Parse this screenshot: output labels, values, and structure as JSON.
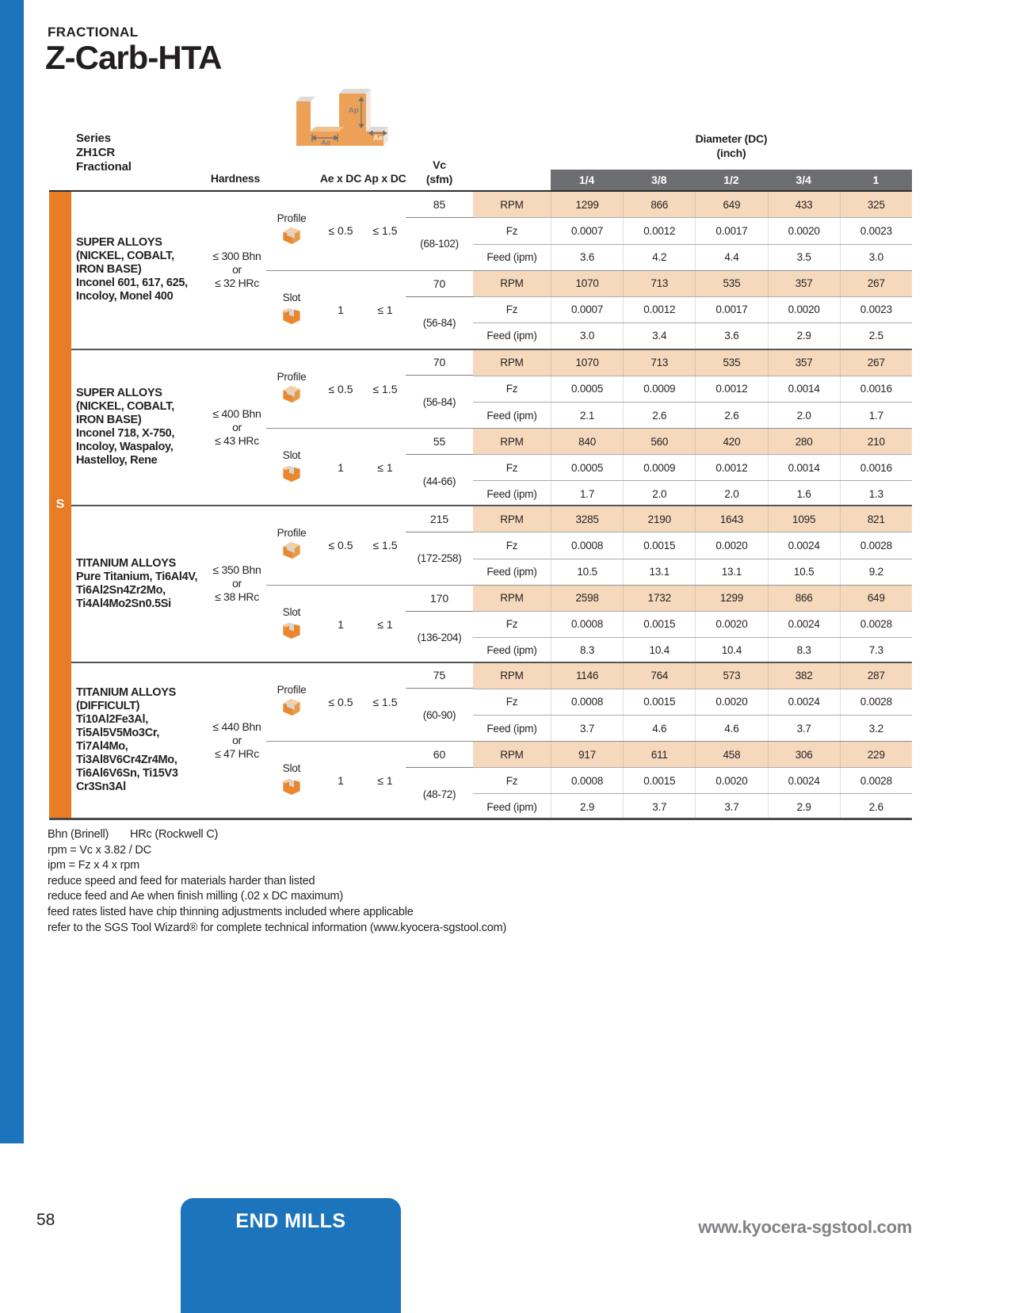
{
  "page": {
    "eyebrow": "FRACTIONAL",
    "title": "Z-Carb-HTA",
    "page_number": "58",
    "footer_tab_label": "END MILLS",
    "footer_url": "www.kyocera-sgstool.com"
  },
  "table": {
    "series_lines": [
      "Series",
      "ZH1CR",
      "Fractional"
    ],
    "hardness_header": "Hardness",
    "ae_header": "Ae x DC",
    "ap_header": "Ap x DC",
    "vc_header_lines": [
      "Vc",
      "(sfm)"
    ],
    "diameter_header": "Diameter (DC)",
    "diameter_subheader": "(inch)",
    "diameters": [
      "1/4",
      "3/8",
      "1/2",
      "3/4",
      "1"
    ],
    "row_labels": {
      "rpm": "RPM",
      "fz": "Fz",
      "feed": "Feed (ipm)"
    },
    "group_letter": "S",
    "diagram_labels": {
      "ap": "Ap",
      "ae_left": "Ae",
      "ae_right": "Ae"
    },
    "groups": [
      {
        "material_lines": [
          "SUPER ALLOYS",
          "(NICKEL, COBALT,",
          "IRON BASE)",
          "Inconel 601, 617, 625,",
          "Incoloy, Monel 400"
        ],
        "hardness_lines": [
          "≤ 300 Bhn",
          "or",
          "≤ 32 HRc"
        ],
        "ops": [
          {
            "name": "Profile",
            "ae": "≤ 0.5",
            "ap": "≤ 1.5",
            "vc": "85",
            "range": "(68-102)",
            "rpm": [
              "1299",
              "866",
              "649",
              "433",
              "325"
            ],
            "fz": [
              "0.0007",
              "0.0012",
              "0.0017",
              "0.0020",
              "0.0023"
            ],
            "feed": [
              "3.6",
              "4.2",
              "4.4",
              "3.5",
              "3.0"
            ]
          },
          {
            "name": "Slot",
            "ae": "1",
            "ap": "≤ 1",
            "vc": "70",
            "range": "(56-84)",
            "rpm": [
              "1070",
              "713",
              "535",
              "357",
              "267"
            ],
            "fz": [
              "0.0007",
              "0.0012",
              "0.0017",
              "0.0020",
              "0.0023"
            ],
            "feed": [
              "3.0",
              "3.4",
              "3.6",
              "2.9",
              "2.5"
            ]
          }
        ]
      },
      {
        "material_lines": [
          "SUPER ALLOYS",
          "(NICKEL, COBALT,",
          "IRON BASE)",
          "Inconel 718, X-750,",
          "Incoloy, Waspaloy,",
          "Hastelloy, Rene"
        ],
        "hardness_lines": [
          "≤ 400 Bhn",
          "or",
          "≤ 43 HRc"
        ],
        "ops": [
          {
            "name": "Profile",
            "ae": "≤ 0.5",
            "ap": "≤ 1.5",
            "vc": "70",
            "range": "(56-84)",
            "rpm": [
              "1070",
              "713",
              "535",
              "357",
              "267"
            ],
            "fz": [
              "0.0005",
              "0.0009",
              "0.0012",
              "0.0014",
              "0.0016"
            ],
            "feed": [
              "2.1",
              "2.6",
              "2.6",
              "2.0",
              "1.7"
            ]
          },
          {
            "name": "Slot",
            "ae": "1",
            "ap": "≤ 1",
            "vc": "55",
            "range": "(44-66)",
            "rpm": [
              "840",
              "560",
              "420",
              "280",
              "210"
            ],
            "fz": [
              "0.0005",
              "0.0009",
              "0.0012",
              "0.0014",
              "0.0016"
            ],
            "feed": [
              "1.7",
              "2.0",
              "2.0",
              "1.6",
              "1.3"
            ]
          }
        ]
      },
      {
        "material_lines": [
          "TITANIUM ALLOYS",
          "Pure Titanium, Ti6Al4V,",
          "Ti6Al2Sn4Zr2Mo,",
          "Ti4Al4Mo2Sn0.5Si"
        ],
        "hardness_lines": [
          "≤ 350 Bhn",
          "or",
          "≤ 38 HRc"
        ],
        "ops": [
          {
            "name": "Profile",
            "ae": "≤ 0.5",
            "ap": "≤ 1.5",
            "vc": "215",
            "range": "(172-258)",
            "rpm": [
              "3285",
              "2190",
              "1643",
              "1095",
              "821"
            ],
            "fz": [
              "0.0008",
              "0.0015",
              "0.0020",
              "0.0024",
              "0.0028"
            ],
            "feed": [
              "10.5",
              "13.1",
              "13.1",
              "10.5",
              "9.2"
            ]
          },
          {
            "name": "Slot",
            "ae": "1",
            "ap": "≤ 1",
            "vc": "170",
            "range": "(136-204)",
            "rpm": [
              "2598",
              "1732",
              "1299",
              "866",
              "649"
            ],
            "fz": [
              "0.0008",
              "0.0015",
              "0.0020",
              "0.0024",
              "0.0028"
            ],
            "feed": [
              "8.3",
              "10.4",
              "10.4",
              "8.3",
              "7.3"
            ]
          }
        ]
      },
      {
        "material_lines": [
          "TITANIUM ALLOYS",
          "(DIFFICULT)",
          "Ti10Al2Fe3Al,",
          "Ti5Al5V5Mo3Cr, Ti7Al4Mo,",
          "Ti3Al8V6Cr4Zr4Mo,",
          "Ti6Al6V6Sn, Ti15V3",
          "Cr3Sn3Al"
        ],
        "hardness_lines": [
          "≤ 440 Bhn",
          "or",
          "≤ 47 HRc"
        ],
        "ops": [
          {
            "name": "Profile",
            "ae": "≤ 0.5",
            "ap": "≤ 1.5",
            "vc": "75",
            "range": "(60-90)",
            "rpm": [
              "1146",
              "764",
              "573",
              "382",
              "287"
            ],
            "fz": [
              "0.0008",
              "0.0015",
              "0.0020",
              "0.0024",
              "0.0028"
            ],
            "feed": [
              "3.7",
              "4.6",
              "4.6",
              "3.7",
              "3.2"
            ]
          },
          {
            "name": "Slot",
            "ae": "1",
            "ap": "≤ 1",
            "vc": "60",
            "range": "(48-72)",
            "rpm": [
              "917",
              "611",
              "458",
              "306",
              "229"
            ],
            "fz": [
              "0.0008",
              "0.0015",
              "0.0020",
              "0.0024",
              "0.0028"
            ],
            "feed": [
              "2.9",
              "3.7",
              "3.7",
              "2.9",
              "2.6"
            ]
          }
        ]
      }
    ]
  },
  "notes": [
    "Bhn (Brinell)       HRc (Rockwell C)",
    "rpm = Vc x 3.82 / DC",
    "ipm = Fz x 4 x rpm",
    "reduce speed and feed for materials harder than listed",
    "reduce feed and Ae when finish milling (.02 x DC maximum)",
    "feed rates listed have chip thinning adjustments included where applicable",
    "refer to the SGS Tool Wizard® for complete technical information (www.kyocera-sgstool.com)"
  ],
  "colors": {
    "blue": "#1c75bc",
    "orange": "#e87d25",
    "rpm_band": "#f6d9bd",
    "header_gray": "#6d6e71",
    "text": "#231f20",
    "url_gray": "#808285"
  }
}
